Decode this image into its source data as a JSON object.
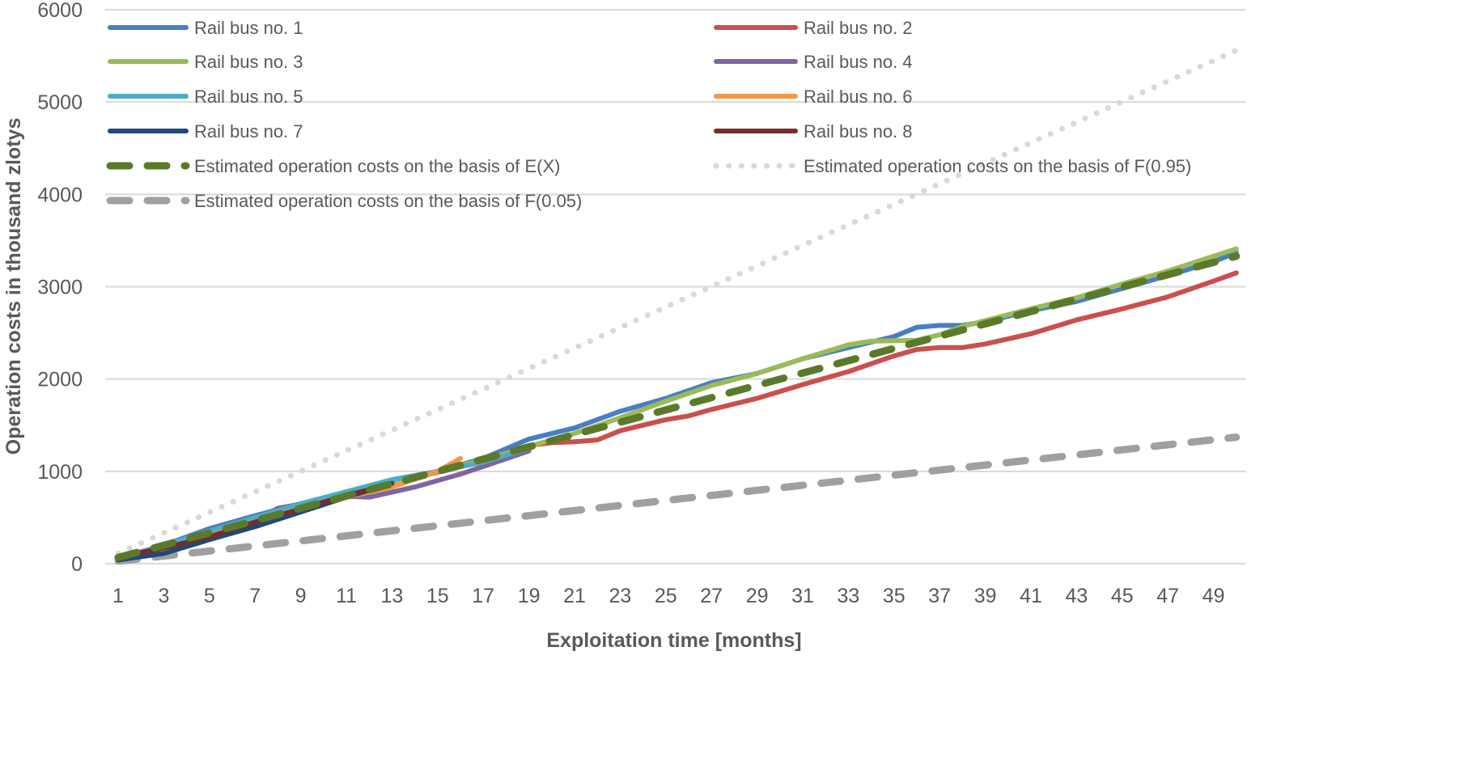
{
  "chart_data": {
    "type": "line",
    "title": "",
    "xlabel": "Exploitation time [months]",
    "ylabel": "Operation costs  in thousand zlotys",
    "xlim": [
      1,
      50
    ],
    "ylim": [
      0,
      6000
    ],
    "y_ticks": [
      0,
      1000,
      2000,
      3000,
      4000,
      5000,
      6000
    ],
    "x_ticks": [
      1,
      3,
      5,
      7,
      9,
      11,
      13,
      15,
      17,
      19,
      21,
      23,
      25,
      27,
      29,
      31,
      33,
      35,
      37,
      39,
      41,
      43,
      45,
      47,
      49
    ],
    "grid": "horizontal",
    "legend_position": "top",
    "series": [
      {
        "name": "Rail bus no. 1",
        "color": "#4a7ec4",
        "style": "solid",
        "points": [
          [
            1,
            50
          ],
          [
            3,
            200
          ],
          [
            5,
            380
          ],
          [
            7,
            520
          ],
          [
            9,
            650
          ],
          [
            11,
            760
          ],
          [
            13,
            900
          ],
          [
            15,
            1000
          ],
          [
            17,
            1140
          ],
          [
            19,
            1350
          ],
          [
            21,
            1470
          ],
          [
            23,
            1650
          ],
          [
            25,
            1790
          ],
          [
            27,
            1960
          ],
          [
            29,
            2060
          ],
          [
            31,
            2220
          ],
          [
            33,
            2340
          ],
          [
            35,
            2460
          ],
          [
            36,
            2560
          ],
          [
            37,
            2580
          ],
          [
            38,
            2580
          ],
          [
            39,
            2620
          ],
          [
            41,
            2740
          ],
          [
            43,
            2840
          ],
          [
            45,
            2980
          ],
          [
            47,
            3120
          ],
          [
            49,
            3270
          ],
          [
            50,
            3370
          ]
        ]
      },
      {
        "name": "Rail bus no. 2",
        "color": "#c9504d",
        "style": "solid",
        "points": [
          [
            1,
            50
          ],
          [
            3,
            170
          ],
          [
            5,
            320
          ],
          [
            7,
            470
          ],
          [
            9,
            610
          ],
          [
            11,
            740
          ],
          [
            13,
            870
          ],
          [
            15,
            990
          ],
          [
            17,
            1120
          ],
          [
            19,
            1280
          ],
          [
            20,
            1310
          ],
          [
            21,
            1320
          ],
          [
            22,
            1340
          ],
          [
            23,
            1440
          ],
          [
            25,
            1560
          ],
          [
            26,
            1600
          ],
          [
            27,
            1670
          ],
          [
            29,
            1790
          ],
          [
            31,
            1940
          ],
          [
            33,
            2080
          ],
          [
            35,
            2250
          ],
          [
            36,
            2320
          ],
          [
            37,
            2340
          ],
          [
            38,
            2340
          ],
          [
            39,
            2380
          ],
          [
            41,
            2490
          ],
          [
            43,
            2640
          ],
          [
            45,
            2760
          ],
          [
            47,
            2890
          ],
          [
            49,
            3060
          ],
          [
            50,
            3150
          ]
        ]
      },
      {
        "name": "Rail bus no. 3",
        "color": "#9bbb59",
        "style": "solid",
        "points": [
          [
            1,
            60
          ],
          [
            3,
            180
          ],
          [
            5,
            340
          ],
          [
            7,
            490
          ],
          [
            9,
            630
          ],
          [
            11,
            760
          ],
          [
            13,
            880
          ],
          [
            15,
            1000
          ],
          [
            17,
            1120
          ],
          [
            19,
            1270
          ],
          [
            21,
            1410
          ],
          [
            23,
            1580
          ],
          [
            25,
            1760
          ],
          [
            27,
            1930
          ],
          [
            29,
            2060
          ],
          [
            31,
            2220
          ],
          [
            33,
            2370
          ],
          [
            34,
            2410
          ],
          [
            36,
            2420
          ],
          [
            37,
            2480
          ],
          [
            38,
            2570
          ],
          [
            41,
            2760
          ],
          [
            43,
            2880
          ],
          [
            45,
            3030
          ],
          [
            47,
            3170
          ],
          [
            49,
            3330
          ],
          [
            50,
            3410
          ]
        ]
      },
      {
        "name": "Rail bus no. 4",
        "color": "#8064a2",
        "style": "solid",
        "points": [
          [
            1,
            40
          ],
          [
            3,
            150
          ],
          [
            5,
            300
          ],
          [
            7,
            470
          ],
          [
            8,
            600
          ],
          [
            10,
            690
          ],
          [
            11,
            730
          ],
          [
            12,
            720
          ],
          [
            14,
            830
          ],
          [
            16,
            970
          ],
          [
            19,
            1220
          ]
        ]
      },
      {
        "name": "Rail bus no. 5",
        "color": "#4bacc6",
        "style": "solid",
        "points": [
          [
            1,
            60
          ],
          [
            3,
            200
          ],
          [
            5,
            350
          ],
          [
            7,
            500
          ],
          [
            9,
            650
          ],
          [
            11,
            780
          ],
          [
            13,
            910
          ],
          [
            15,
            1000
          ],
          [
            17,
            1100
          ],
          [
            19,
            1250
          ]
        ]
      },
      {
        "name": "Rail bus no. 6",
        "color": "#f79646",
        "style": "solid",
        "points": [
          [
            1,
            50
          ],
          [
            3,
            150
          ],
          [
            5,
            300
          ],
          [
            7,
            450
          ],
          [
            9,
            580
          ],
          [
            11,
            720
          ],
          [
            13,
            830
          ],
          [
            15,
            1000
          ],
          [
            16,
            1140
          ]
        ]
      },
      {
        "name": "Rail bus no. 7",
        "color": "#1f497d",
        "style": "solid",
        "points": [
          [
            1,
            40
          ],
          [
            3,
            110
          ],
          [
            5,
            260
          ],
          [
            7,
            400
          ],
          [
            9,
            560
          ],
          [
            11,
            720
          ],
          [
            13,
            870
          ]
        ]
      },
      {
        "name": "Rail bus no. 8",
        "color": "#772c2a",
        "style": "solid",
        "points": [
          [
            1,
            70
          ],
          [
            3,
            170
          ],
          [
            5,
            290
          ],
          [
            7,
            450
          ],
          [
            9,
            590
          ],
          [
            11,
            740
          ],
          [
            12,
            800
          ]
        ]
      },
      {
        "name": "Estimated operation costs on the basis of E(X)",
        "color": "#5a7a2a",
        "style": "dash",
        "points": [
          [
            1,
            67
          ],
          [
            50,
            3330
          ]
        ]
      },
      {
        "name": "Estimated operation costs on the basis of F(0.95)",
        "color": "#d9d9d9",
        "style": "dot",
        "points": [
          [
            1,
            111
          ],
          [
            50,
            5560
          ]
        ]
      },
      {
        "name": "Estimated operation costs on the basis of F(0.05)",
        "color": "#a0a0a0",
        "style": "dash",
        "points": [
          [
            1,
            27
          ],
          [
            50,
            1370
          ]
        ]
      }
    ]
  }
}
